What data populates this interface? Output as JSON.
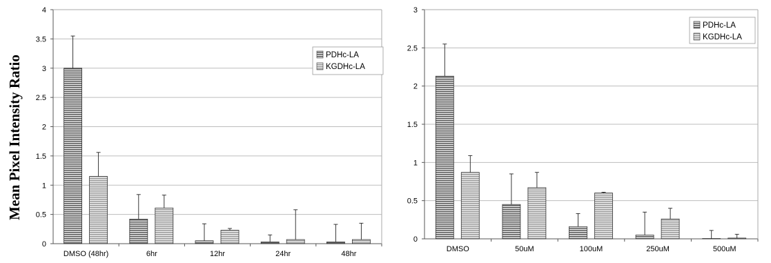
{
  "chart_data": [
    {
      "type": "bar",
      "ylabel": "Mean Pixel Intensity Ratio",
      "categories": [
        "DMSO (48hr)",
        "6hr",
        "12hr",
        "24hr",
        "48hr"
      ],
      "yticks": [
        "0",
        "0.5",
        "1",
        "1.5",
        "2",
        "2.5",
        "3",
        "3.5",
        "4"
      ],
      "ylim": [
        0,
        4
      ],
      "grid": true,
      "legend_position": "top-right",
      "series": [
        {
          "name": "PDHc-LA",
          "values": [
            3.0,
            0.42,
            0.05,
            0.03,
            0.03
          ],
          "errors": [
            0.55,
            0.42,
            0.29,
            0.12,
            0.3
          ],
          "color": "#8c8c8c",
          "pattern": "horizontal-lines"
        },
        {
          "name": "KGDHc-LA",
          "values": [
            1.15,
            0.61,
            0.23,
            0.07,
            0.07
          ],
          "errors": [
            0.41,
            0.22,
            0.03,
            0.51,
            0.28
          ],
          "color": "#b4b4b4",
          "pattern": "horizontal-lines"
        }
      ]
    },
    {
      "type": "bar",
      "ylabel": "",
      "categories": [
        "DMSO",
        "50uM",
        "100uM",
        "250uM",
        "500uM"
      ],
      "yticks": [
        "0",
        "0.5",
        "1",
        "1.5",
        "2",
        "2.5",
        "3"
      ],
      "ylim": [
        0,
        3
      ],
      "grid": true,
      "legend_position": "top-right",
      "series": [
        {
          "name": "PDHc-LA",
          "values": [
            2.13,
            0.45,
            0.16,
            0.05,
            0.0
          ],
          "errors": [
            0.42,
            0.4,
            0.17,
            0.3,
            0.11
          ],
          "color": "#8c8c8c",
          "pattern": "horizontal-lines"
        },
        {
          "name": "KGDHc-LA",
          "values": [
            0.87,
            0.67,
            0.6,
            0.26,
            0.01
          ],
          "errors": [
            0.22,
            0.2,
            0.01,
            0.14,
            0.05
          ],
          "color": "#b4b4b4",
          "pattern": "horizontal-lines"
        }
      ]
    }
  ]
}
